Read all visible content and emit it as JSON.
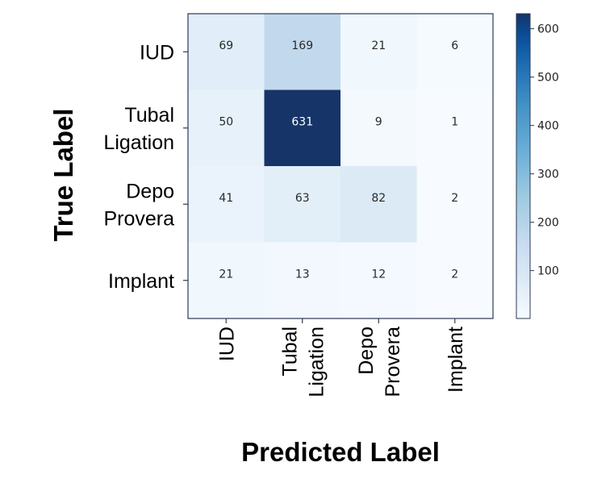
{
  "chart_data": {
    "type": "heatmap",
    "title": "",
    "xlabel": "Predicted Label",
    "ylabel": "True Label",
    "x_categories": [
      [
        "IUD"
      ],
      [
        "Tubal",
        "Ligation"
      ],
      [
        "Depo",
        "Provera"
      ],
      [
        "Implant"
      ]
    ],
    "y_categories": [
      [
        "IUD"
      ],
      [
        "Tubal",
        "Ligation"
      ],
      [
        "Depo",
        "Provera"
      ],
      [
        "Implant"
      ]
    ],
    "values": [
      [
        69,
        169,
        21,
        6
      ],
      [
        50,
        631,
        9,
        1
      ],
      [
        41,
        63,
        82,
        2
      ],
      [
        21,
        13,
        12,
        2
      ]
    ],
    "colormap": "Blues",
    "vmin": 1,
    "vmax": 631,
    "colorbar_ticks": [
      100,
      200,
      300,
      400,
      500,
      600
    ],
    "grid": false
  }
}
